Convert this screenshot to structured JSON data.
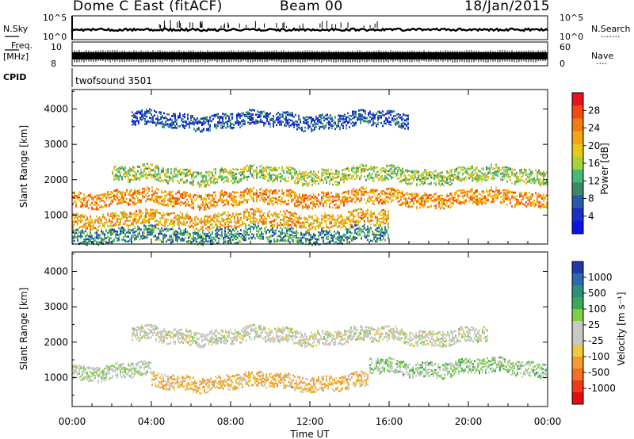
{
  "header": {
    "title": "Dome C East (fitACF)",
    "beam": "Beam 00",
    "date": "18/Jan/2015"
  },
  "strip_labels": {
    "nsky": "N.Sky",
    "nsky_ticks": [
      "10^5",
      "10^0"
    ],
    "nsearch": "N.Search",
    "nsearch_dots": "·······",
    "freq": "Freq.",
    "freq_unit": "[MHz]",
    "freq_ticks": [
      "10",
      "8"
    ],
    "nave": "Nave",
    "nave_dots": "····",
    "nave_ticks": [
      "60",
      "0"
    ],
    "cpid": "CPID",
    "cpid_value": "twofsound 3501"
  },
  "axes": {
    "ylabel": "Slant Range [km]",
    "xlabel": "Time UT",
    "y_ticks": [
      "1000",
      "2000",
      "3000",
      "4000"
    ],
    "x_ticks": [
      "00:00",
      "04:00",
      "08:00",
      "12:00",
      "16:00",
      "20:00",
      "00:00"
    ]
  },
  "colorbars": {
    "power_label": "Power [dB]",
    "power_ticks": [
      "28",
      "24",
      "20",
      "16",
      "12",
      "8",
      "4"
    ],
    "power_colors": [
      "#e8141a",
      "#f24a12",
      "#f57a12",
      "#f5a512",
      "#e8c81c",
      "#a8d23a",
      "#46b878",
      "#3a8a68",
      "#2a5aa8",
      "#1a2ec8",
      "#0a14e6"
    ],
    "velocity_label": "Velocity [m s⁻¹]",
    "velocity_ticks": [
      "1000",
      "500",
      "100",
      "25",
      "-25",
      "-100",
      "-500",
      "-1000"
    ],
    "velocity_colors": [
      "#2338a8",
      "#2a6ab0",
      "#2f8e78",
      "#3aa858",
      "#7cd044",
      "#c8c8c8",
      "#c8c8c8",
      "#f0c840",
      "#f59a30",
      "#f57020",
      "#ee3a18",
      "#e01010"
    ]
  },
  "chart_data": [
    {
      "type": "heatmap",
      "title": "Power",
      "xlabel": "Time UT",
      "ylabel": "Slant Range [km]",
      "x_range": [
        "00:00",
        "24:00"
      ],
      "ylim": [
        180,
        4550
      ],
      "colorbar_label": "Power [dB]",
      "colorbar_range": [
        0,
        32
      ],
      "bands": [
        {
          "center_km": 1500,
          "power_db": 24,
          "time_span": [
            "00:00",
            "24:00"
          ]
        },
        {
          "center_km": 900,
          "power_db": 22,
          "time_span": [
            "00:00",
            "16:00"
          ]
        },
        {
          "center_km": 2150,
          "power_db": 16,
          "time_span": [
            "02:00",
            "24:00"
          ]
        },
        {
          "center_km": 450,
          "power_db": 10,
          "time_span": [
            "00:00",
            "16:00"
          ]
        },
        {
          "center_km": 3700,
          "power_db": 6,
          "time_span": [
            "03:00",
            "17:00"
          ]
        }
      ]
    },
    {
      "type": "heatmap",
      "title": "Velocity",
      "xlabel": "Time UT",
      "ylabel": "Slant Range [km]",
      "x_range": [
        "00:00",
        "24:00"
      ],
      "ylim": [
        180,
        4550
      ],
      "colorbar_label": "Velocity [m s⁻¹]",
      "colorbar_range": [
        -1000,
        1000
      ],
      "bands": [
        {
          "center_km": 2200,
          "velocity_ms": 0,
          "time_span": [
            "03:00",
            "21:00"
          ]
        },
        {
          "center_km": 900,
          "velocity_ms": -300,
          "time_span": [
            "04:00",
            "15:00"
          ]
        },
        {
          "center_km": 1300,
          "velocity_ms": 200,
          "time_span": [
            "15:00",
            "24:00"
          ]
        },
        {
          "center_km": 1200,
          "velocity_ms": 100,
          "time_span": [
            "00:00",
            "04:00"
          ]
        }
      ]
    }
  ]
}
